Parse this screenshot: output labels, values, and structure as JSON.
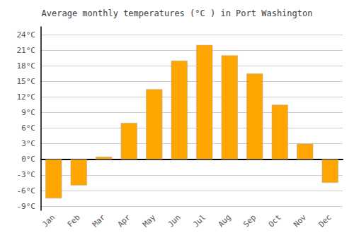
{
  "chart_data": {
    "type": "bar",
    "title": "Average monthly temperatures (°C ) in Port Washington",
    "categories": [
      "Jan",
      "Feb",
      "Mar",
      "Apr",
      "May",
      "Jun",
      "Jul",
      "Aug",
      "Sep",
      "Oct",
      "Nov",
      "Dec"
    ],
    "values": [
      -7.5,
      -5.0,
      0.5,
      7.0,
      13.5,
      19.0,
      22.0,
      20.0,
      16.5,
      10.5,
      3.0,
      -4.5
    ],
    "color": "#FFA500",
    "ylim": [
      -9.8,
      25.5
    ],
    "yticks": [
      {
        "value": -9,
        "label": "-9°C"
      },
      {
        "value": -6,
        "label": "-6°C"
      },
      {
        "value": -3,
        "label": "-3°C"
      },
      {
        "value": 0,
        "label": "0°C"
      },
      {
        "value": 3,
        "label": "3°C"
      },
      {
        "value": 6,
        "label": "6°C"
      },
      {
        "value": 9,
        "label": "9°C"
      },
      {
        "value": 12,
        "label": "12°C"
      },
      {
        "value": 15,
        "label": "15°C"
      },
      {
        "value": 18,
        "label": "18°C"
      },
      {
        "value": 21,
        "label": "21°C"
      },
      {
        "value": 24,
        "label": "24°C"
      }
    ],
    "grid": true
  }
}
